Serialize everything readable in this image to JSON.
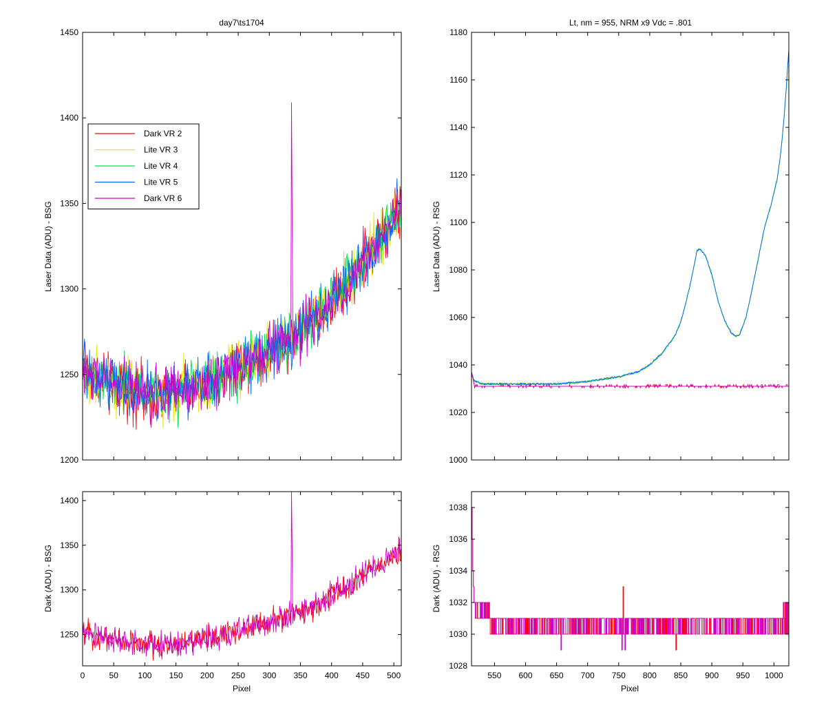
{
  "figure": {
    "colors": {
      "background": "#ffffff",
      "axes": "#000000"
    }
  },
  "chart_data": [
    {
      "id": "top-left",
      "type": "line",
      "title": "day7\\ts1704",
      "xlabel": "",
      "ylabel": "Laser Data (ADU) - BSG",
      "xlim": [
        0,
        512
      ],
      "ylim": [
        1200,
        1450
      ],
      "xticks": [
        0,
        50,
        100,
        150,
        200,
        250,
        300,
        350,
        400,
        450,
        500
      ],
      "yticks": [
        1200,
        1250,
        1300,
        1350,
        1400,
        1450
      ],
      "show_xticklabels": false,
      "legend": {
        "placement": "upper-left"
      },
      "series": [
        {
          "name": "Dark VR 2",
          "color": "#ff0000"
        },
        {
          "name": "Lite VR 3",
          "color": "#e6e600"
        },
        {
          "name": "Lite VR 4",
          "color": "#00dd55"
        },
        {
          "name": "Lite VR 5",
          "color": "#0066ff"
        },
        {
          "name": "Dark VR 6",
          "color": "#cc00cc"
        }
      ],
      "trend": {
        "x": [
          0,
          50,
          100,
          150,
          200,
          250,
          300,
          350,
          400,
          450,
          500,
          512
        ],
        "y": [
          1252,
          1245,
          1238,
          1240,
          1245,
          1255,
          1263,
          1275,
          1292,
          1315,
          1340,
          1348
        ]
      },
      "noise_amplitude": 10,
      "spikes": [
        {
          "x": 336,
          "series": "Dark VR 6",
          "value": 1409
        },
        {
          "x": 337,
          "series": "Dark VR 6",
          "value": 1349
        }
      ]
    },
    {
      "id": "top-right",
      "type": "line",
      "title": "Lt, nm = 955, NRM x9 Vdc = .801",
      "xlabel": "",
      "ylabel": "Laser Data (ADU) - RSG",
      "xlim": [
        513,
        1024
      ],
      "ylim": [
        1000,
        1180
      ],
      "xticks": [
        550,
        600,
        650,
        700,
        750,
        800,
        850,
        900,
        950,
        1000
      ],
      "yticks": [
        1000,
        1020,
        1040,
        1060,
        1080,
        1100,
        1120,
        1140,
        1160,
        1180
      ],
      "show_xticklabels": false,
      "series": [
        {
          "name": "Dark VR 2",
          "color": "#ff0000",
          "kind": "dark"
        },
        {
          "name": "Lite VR 3",
          "color": "#e6e600",
          "kind": "lite"
        },
        {
          "name": "Lite VR 4",
          "color": "#00dd55",
          "kind": "lite"
        },
        {
          "name": "Lite VR 5",
          "color": "#0066ff",
          "kind": "lite"
        },
        {
          "name": "Dark VR 6",
          "color": "#cc00cc",
          "kind": "dark"
        }
      ],
      "lite_curve": {
        "x": [
          513,
          516,
          520,
          530,
          550,
          600,
          650,
          700,
          750,
          780,
          800,
          820,
          840,
          850,
          860,
          870,
          876,
          880,
          890,
          900,
          910,
          920,
          930,
          938,
          945,
          955,
          965,
          975,
          985,
          995,
          1005,
          1010,
          1015,
          1020,
          1024
        ],
        "y": [
          1037,
          1034,
          1033,
          1032,
          1032,
          1032,
          1032,
          1033,
          1035,
          1037,
          1040,
          1045,
          1052,
          1058,
          1068,
          1080,
          1088,
          1089,
          1086,
          1078,
          1067,
          1059,
          1054,
          1052,
          1053,
          1060,
          1072,
          1085,
          1098,
          1107,
          1118,
          1127,
          1140,
          1157,
          1173
        ]
      },
      "dark_level": 1031
    },
    {
      "id": "bottom-left",
      "type": "line",
      "title": "",
      "xlabel": "Pixel",
      "ylabel": "Dark (ADU) - BSG",
      "xlim": [
        0,
        512
      ],
      "ylim": [
        1215,
        1410
      ],
      "xticks": [
        0,
        50,
        100,
        150,
        200,
        250,
        300,
        350,
        400,
        450,
        500
      ],
      "yticks": [
        1250,
        1300,
        1350,
        1400
      ],
      "show_xticklabels": true,
      "series": [
        {
          "name": "Dark VR 2",
          "color": "#ff0000"
        },
        {
          "name": "Dark VR 6",
          "color": "#cc00cc"
        }
      ],
      "trend": {
        "x": [
          0,
          50,
          100,
          150,
          200,
          250,
          300,
          350,
          400,
          450,
          500,
          512
        ],
        "y": [
          1252,
          1245,
          1238,
          1240,
          1245,
          1255,
          1263,
          1275,
          1292,
          1315,
          1340,
          1348
        ]
      },
      "noise_amplitude": 9,
      "spikes": [
        {
          "x": 336,
          "series": "Dark VR 6",
          "value": 1410
        },
        {
          "x": 337,
          "series": "Dark VR 6",
          "value": 1349
        }
      ]
    },
    {
      "id": "bottom-right",
      "type": "line",
      "title": "",
      "xlabel": "Pixel",
      "ylabel": "Dark (ADU) - RSG",
      "xlim": [
        513,
        1024
      ],
      "ylim": [
        1028,
        1039
      ],
      "xticks": [
        550,
        600,
        650,
        700,
        750,
        800,
        850,
        900,
        950,
        1000
      ],
      "yticks": [
        1028,
        1030,
        1032,
        1034,
        1036,
        1038
      ],
      "show_xticklabels": true,
      "series": [
        {
          "name": "Dark VR 2",
          "color": "#ff0000"
        },
        {
          "name": "Dark VR 6",
          "color": "#cc00cc"
        }
      ],
      "levels": [
        1030,
        1031
      ],
      "start_values": [
        1038,
        1036,
        1034,
        1033,
        1032,
        1032
      ],
      "dips": [
        {
          "x": 657,
          "value": 1029
        },
        {
          "x": 755,
          "value": 1029
        },
        {
          "x": 760,
          "value": 1029
        },
        {
          "x": 842,
          "value": 1029
        }
      ],
      "peaks": [
        {
          "x": 757,
          "value": 1033
        }
      ]
    }
  ]
}
